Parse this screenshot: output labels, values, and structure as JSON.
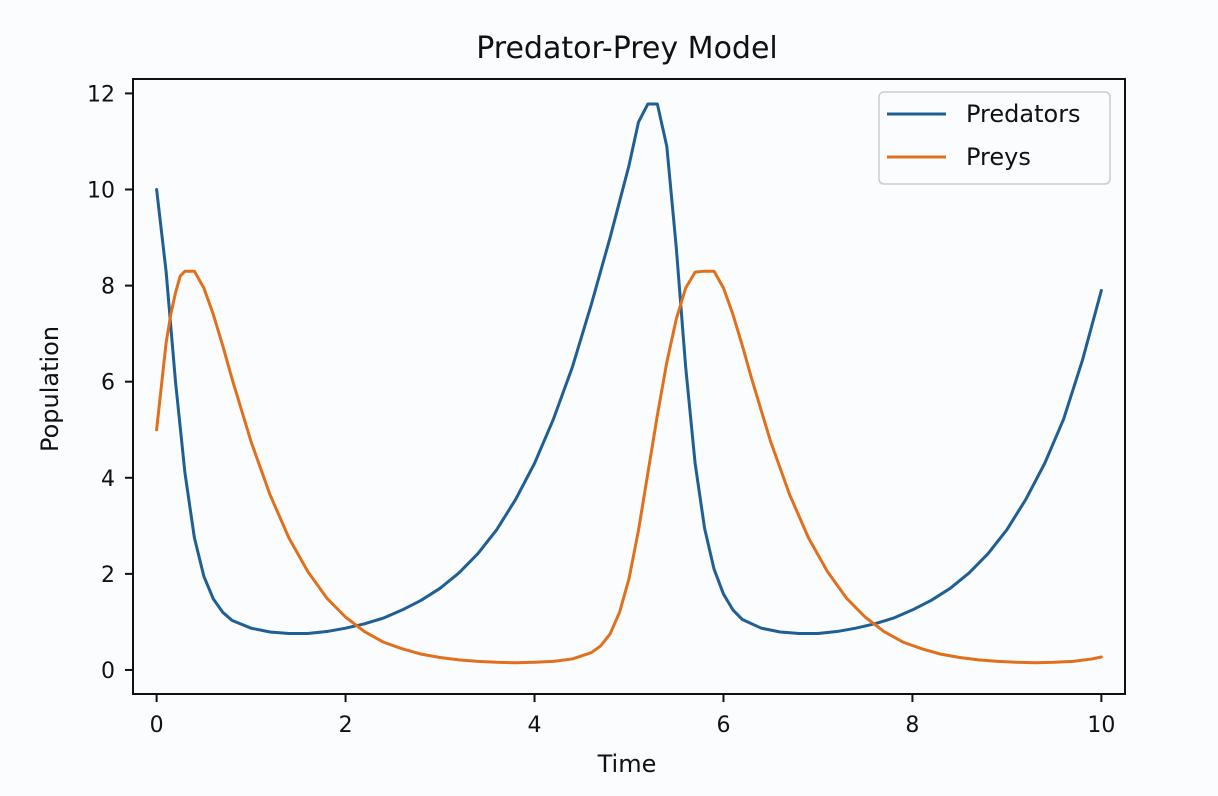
{
  "chart_data": {
    "type": "line",
    "title": "Predator-Prey Model",
    "xlabel": "Time",
    "ylabel": "Population",
    "xlim": [
      -0.25,
      10.25
    ],
    "ylim": [
      -0.5,
      12.3
    ],
    "x_ticks": [
      0,
      2,
      4,
      6,
      8,
      10
    ],
    "y_ticks": [
      0,
      2,
      4,
      6,
      8,
      10,
      12
    ],
    "x_tick_labels": [
      "0",
      "2",
      "4",
      "6",
      "8",
      "10"
    ],
    "y_tick_labels": [
      "0",
      "2",
      "4",
      "6",
      "8",
      "10",
      "12"
    ],
    "grid": false,
    "legend_position": "top-right",
    "series": [
      {
        "name": "Predators",
        "color": "#1f5f93",
        "points": [
          [
            0.0,
            10.0
          ],
          [
            0.1,
            8.3
          ],
          [
            0.2,
            6.0
          ],
          [
            0.3,
            4.1
          ],
          [
            0.4,
            2.75
          ],
          [
            0.5,
            1.95
          ],
          [
            0.6,
            1.48
          ],
          [
            0.7,
            1.2
          ],
          [
            0.8,
            1.03
          ],
          [
            1.0,
            0.87
          ],
          [
            1.2,
            0.79
          ],
          [
            1.4,
            0.76
          ],
          [
            1.6,
            0.76
          ],
          [
            1.8,
            0.8
          ],
          [
            2.0,
            0.87
          ],
          [
            2.2,
            0.96
          ],
          [
            2.4,
            1.08
          ],
          [
            2.6,
            1.25
          ],
          [
            2.8,
            1.45
          ],
          [
            3.0,
            1.7
          ],
          [
            3.2,
            2.02
          ],
          [
            3.4,
            2.42
          ],
          [
            3.6,
            2.92
          ],
          [
            3.8,
            3.55
          ],
          [
            4.0,
            4.3
          ],
          [
            4.2,
            5.22
          ],
          [
            4.4,
            6.3
          ],
          [
            4.6,
            7.6
          ],
          [
            4.8,
            9.0
          ],
          [
            5.0,
            10.5
          ],
          [
            5.1,
            11.4
          ],
          [
            5.2,
            11.78
          ],
          [
            5.3,
            11.78
          ],
          [
            5.4,
            10.9
          ],
          [
            5.5,
            8.8
          ],
          [
            5.6,
            6.3
          ],
          [
            5.7,
            4.3
          ],
          [
            5.8,
            2.95
          ],
          [
            5.9,
            2.1
          ],
          [
            6.0,
            1.58
          ],
          [
            6.1,
            1.25
          ],
          [
            6.2,
            1.05
          ],
          [
            6.4,
            0.87
          ],
          [
            6.6,
            0.79
          ],
          [
            6.8,
            0.76
          ],
          [
            7.0,
            0.76
          ],
          [
            7.2,
            0.8
          ],
          [
            7.4,
            0.87
          ],
          [
            7.6,
            0.96
          ],
          [
            7.8,
            1.08
          ],
          [
            8.0,
            1.25
          ],
          [
            8.2,
            1.45
          ],
          [
            8.4,
            1.7
          ],
          [
            8.6,
            2.02
          ],
          [
            8.8,
            2.42
          ],
          [
            9.0,
            2.92
          ],
          [
            9.2,
            3.55
          ],
          [
            9.4,
            4.3
          ],
          [
            9.6,
            5.22
          ],
          [
            9.8,
            6.45
          ],
          [
            10.0,
            7.9
          ]
        ]
      },
      {
        "name": "Preys",
        "color": "#e0701c",
        "points": [
          [
            0.0,
            5.0
          ],
          [
            0.05,
            5.9
          ],
          [
            0.1,
            6.8
          ],
          [
            0.15,
            7.4
          ],
          [
            0.2,
            7.85
          ],
          [
            0.25,
            8.2
          ],
          [
            0.3,
            8.3
          ],
          [
            0.4,
            8.3
          ],
          [
            0.5,
            7.95
          ],
          [
            0.6,
            7.4
          ],
          [
            0.7,
            6.75
          ],
          [
            0.8,
            6.05
          ],
          [
            1.0,
            4.75
          ],
          [
            1.2,
            3.65
          ],
          [
            1.4,
            2.75
          ],
          [
            1.6,
            2.05
          ],
          [
            1.8,
            1.5
          ],
          [
            2.0,
            1.1
          ],
          [
            2.2,
            0.8
          ],
          [
            2.4,
            0.58
          ],
          [
            2.6,
            0.44
          ],
          [
            2.8,
            0.33
          ],
          [
            3.0,
            0.26
          ],
          [
            3.2,
            0.21
          ],
          [
            3.4,
            0.18
          ],
          [
            3.6,
            0.16
          ],
          [
            3.8,
            0.15
          ],
          [
            4.0,
            0.16
          ],
          [
            4.2,
            0.18
          ],
          [
            4.4,
            0.23
          ],
          [
            4.6,
            0.36
          ],
          [
            4.7,
            0.5
          ],
          [
            4.8,
            0.75
          ],
          [
            4.9,
            1.2
          ],
          [
            5.0,
            1.9
          ],
          [
            5.1,
            2.9
          ],
          [
            5.2,
            4.1
          ],
          [
            5.3,
            5.3
          ],
          [
            5.4,
            6.4
          ],
          [
            5.5,
            7.3
          ],
          [
            5.6,
            7.95
          ],
          [
            5.7,
            8.28
          ],
          [
            5.8,
            8.3
          ],
          [
            5.9,
            8.3
          ],
          [
            6.0,
            7.95
          ],
          [
            6.1,
            7.4
          ],
          [
            6.2,
            6.75
          ],
          [
            6.3,
            6.05
          ],
          [
            6.5,
            4.75
          ],
          [
            6.7,
            3.65
          ],
          [
            6.9,
            2.75
          ],
          [
            7.1,
            2.05
          ],
          [
            7.3,
            1.5
          ],
          [
            7.5,
            1.1
          ],
          [
            7.7,
            0.8
          ],
          [
            7.9,
            0.58
          ],
          [
            8.1,
            0.44
          ],
          [
            8.3,
            0.33
          ],
          [
            8.5,
            0.26
          ],
          [
            8.7,
            0.21
          ],
          [
            8.9,
            0.18
          ],
          [
            9.1,
            0.16
          ],
          [
            9.3,
            0.15
          ],
          [
            9.5,
            0.16
          ],
          [
            9.7,
            0.18
          ],
          [
            9.9,
            0.23
          ],
          [
            10.0,
            0.27
          ]
        ]
      }
    ]
  }
}
